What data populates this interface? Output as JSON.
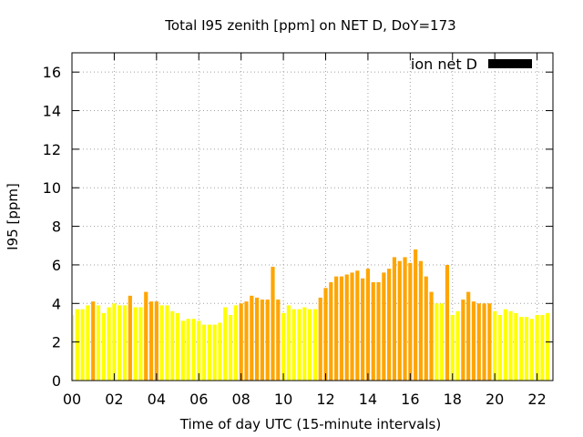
{
  "chart_data": {
    "type": "bar",
    "title": "Total I95 zenith [ppm] on NET D, DoY=173",
    "xlabel": "Time of day UTC (15-minute intervals)",
    "ylabel": "I95 [ppm]",
    "ylim": [
      0,
      17
    ],
    "yticks": [
      0,
      2,
      4,
      6,
      8,
      10,
      12,
      14,
      16
    ],
    "xlim": [
      0,
      22.75
    ],
    "xticks": [
      0,
      2,
      4,
      6,
      8,
      10,
      12,
      14,
      16,
      18,
      20,
      22
    ],
    "xtick_labels": [
      "00",
      "02",
      "04",
      "06",
      "08",
      "10",
      "12",
      "14",
      "16",
      "18",
      "20",
      "22"
    ],
    "grid": true,
    "legend": {
      "position": "top-right",
      "entries": [
        {
          "name": "ion net D",
          "color": "#000000"
        }
      ]
    },
    "colors": {
      "low": "#ffff00",
      "high": "#ffa500"
    },
    "bar_width_hours": 0.18,
    "x": [
      0.0,
      0.25,
      0.5,
      0.75,
      1.0,
      1.25,
      1.5,
      1.75,
      2.0,
      2.25,
      2.5,
      2.75,
      3.0,
      3.25,
      3.5,
      3.75,
      4.0,
      4.25,
      4.5,
      4.75,
      5.0,
      5.25,
      5.5,
      5.75,
      6.0,
      6.25,
      6.5,
      6.75,
      7.0,
      7.25,
      7.5,
      7.75,
      8.0,
      8.25,
      8.5,
      8.75,
      9.0,
      9.25,
      9.5,
      9.75,
      10.0,
      10.25,
      10.5,
      10.75,
      11.0,
      11.25,
      11.5,
      11.75,
      12.0,
      12.25,
      12.5,
      12.75,
      13.0,
      13.25,
      13.5,
      13.75,
      14.0,
      14.25,
      14.5,
      14.75,
      15.0,
      15.25,
      15.5,
      15.75,
      16.0,
      16.25,
      16.5,
      16.75,
      17.0,
      17.25,
      17.5,
      17.75,
      18.0,
      18.25,
      18.5,
      18.75,
      19.0,
      19.25,
      19.5,
      19.75,
      20.0,
      20.25,
      20.5,
      20.75,
      21.0,
      21.25,
      21.5,
      21.75,
      22.0,
      22.25,
      22.5
    ],
    "values": [
      3.4,
      3.7,
      3.7,
      3.9,
      4.1,
      3.9,
      3.5,
      3.8,
      4.0,
      3.9,
      3.9,
      4.4,
      3.8,
      3.8,
      4.6,
      4.1,
      4.1,
      3.9,
      3.9,
      3.6,
      3.5,
      3.1,
      3.2,
      3.2,
      3.1,
      2.9,
      2.9,
      2.9,
      3.0,
      3.8,
      3.4,
      3.9,
      4.0,
      4.1,
      4.4,
      4.3,
      4.2,
      4.2,
      5.9,
      4.2,
      3.5,
      3.9,
      3.7,
      3.7,
      3.8,
      3.7,
      3.7,
      4.3,
      4.8,
      5.1,
      5.4,
      5.4,
      5.5,
      5.6,
      5.7,
      5.3,
      5.8,
      5.1,
      5.1,
      5.6,
      5.8,
      6.4,
      6.2,
      6.4,
      6.1,
      6.8,
      6.2,
      5.4,
      4.6,
      4.0,
      4.0,
      6.0,
      3.4,
      3.6,
      4.2,
      4.6,
      4.1,
      4.0,
      4.0,
      4.0,
      3.6,
      3.4,
      3.7,
      3.6,
      3.5,
      3.3,
      3.3,
      3.2,
      3.4,
      3.4,
      3.5
    ],
    "bar_colors": [
      "low",
      "low",
      "low",
      "low",
      "high",
      "low",
      "low",
      "low",
      "low",
      "low",
      "low",
      "high",
      "low",
      "low",
      "high",
      "high",
      "high",
      "low",
      "low",
      "low",
      "low",
      "low",
      "low",
      "low",
      "low",
      "low",
      "low",
      "low",
      "low",
      "low",
      "low",
      "low",
      "high",
      "high",
      "high",
      "high",
      "high",
      "high",
      "high",
      "high",
      "low",
      "low",
      "low",
      "low",
      "low",
      "low",
      "low",
      "high",
      "high",
      "high",
      "high",
      "high",
      "high",
      "high",
      "high",
      "high",
      "high",
      "high",
      "high",
      "high",
      "high",
      "high",
      "high",
      "high",
      "high",
      "high",
      "high",
      "high",
      "high",
      "low",
      "low",
      "high",
      "low",
      "low",
      "high",
      "high",
      "high",
      "high",
      "high",
      "high",
      "low",
      "low",
      "low",
      "low",
      "low",
      "low",
      "low",
      "low",
      "low",
      "low",
      "low"
    ]
  }
}
